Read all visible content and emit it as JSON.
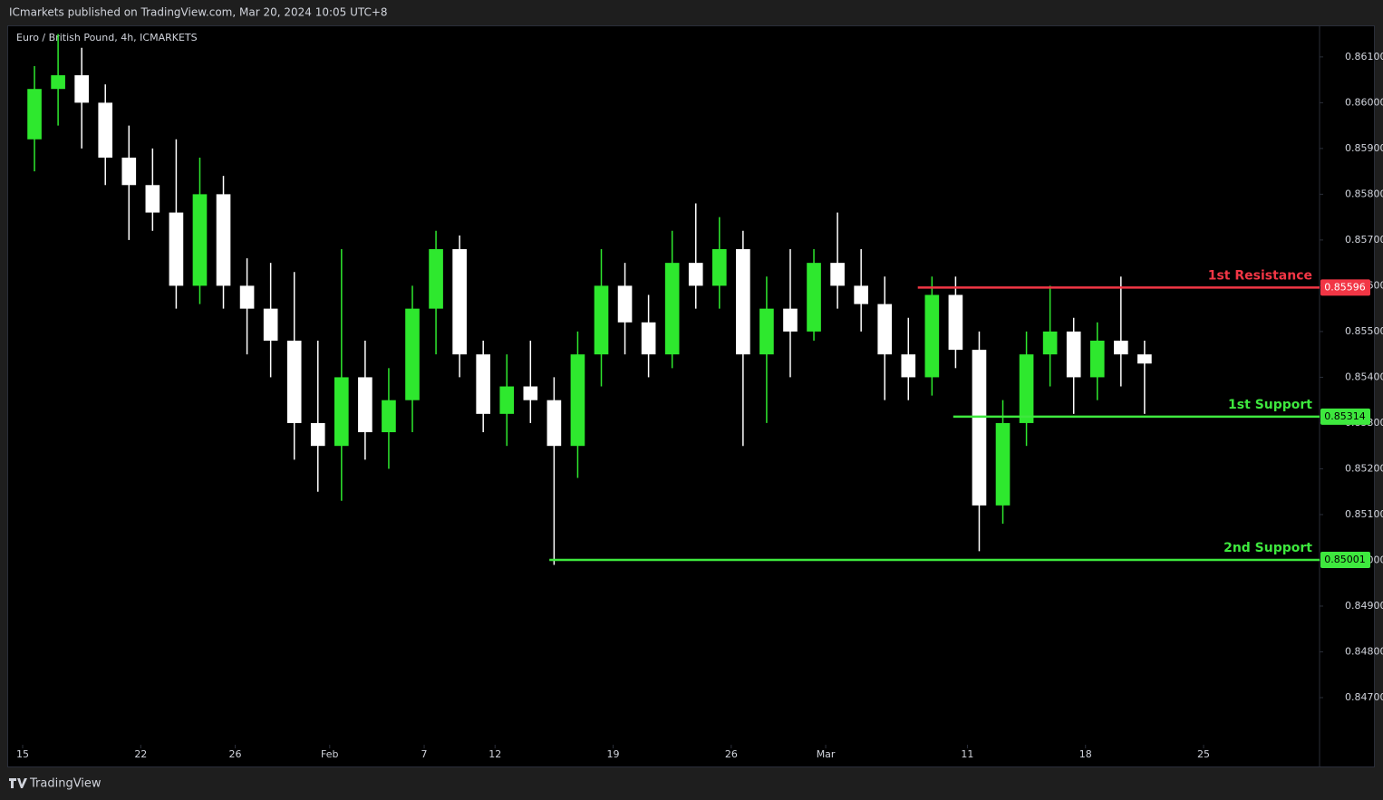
{
  "header": {
    "publisher": "ICmarkets published on TradingView.com, Mar 20, 2024 10:05 UTC+8"
  },
  "chart_data": {
    "type": "candlestick",
    "title": "Euro / British Pound, 4h, ICMARKETS",
    "up_color": "#2ee82e",
    "down_color": "#ffffff",
    "open": [
      0.8592,
      0.8603,
      0.8606,
      0.86,
      0.8588,
      0.8582,
      0.8576,
      0.856,
      0.858,
      0.856,
      0.8555,
      0.8548,
      0.853,
      0.8525,
      0.854,
      0.8528,
      0.8535,
      0.8555,
      0.8568,
      0.8545,
      0.8532,
      0.8538,
      0.8535,
      0.8525,
      0.8545,
      0.856,
      0.8552,
      0.8545,
      0.8565,
      0.856,
      0.8568,
      0.8545,
      0.8555,
      0.855,
      0.8565,
      0.856,
      0.8556,
      0.8545,
      0.854,
      0.8558,
      0.8546,
      0.8512,
      0.853,
      0.8545,
      0.855,
      0.854,
      0.8548,
      0.8545
    ],
    "high": [
      0.8608,
      0.8615,
      0.8612,
      0.8604,
      0.8595,
      0.859,
      0.8592,
      0.8588,
      0.8584,
      0.8566,
      0.8565,
      0.8563,
      0.8548,
      0.8568,
      0.8548,
      0.8542,
      0.856,
      0.8572,
      0.8571,
      0.8548,
      0.8545,
      0.8548,
      0.854,
      0.855,
      0.8568,
      0.8565,
      0.8558,
      0.8572,
      0.8578,
      0.8575,
      0.8572,
      0.8562,
      0.8568,
      0.8568,
      0.8576,
      0.8568,
      0.8562,
      0.8553,
      0.8562,
      0.8562,
      0.855,
      0.8535,
      0.855,
      0.856,
      0.8553,
      0.8552,
      0.8562,
      0.8548
    ],
    "low": [
      0.8585,
      0.8595,
      0.859,
      0.8582,
      0.857,
      0.8572,
      0.8555,
      0.8556,
      0.8555,
      0.8545,
      0.854,
      0.8522,
      0.8515,
      0.8513,
      0.8522,
      0.852,
      0.8528,
      0.8545,
      0.854,
      0.8528,
      0.8525,
      0.853,
      0.8499,
      0.8518,
      0.8538,
      0.8545,
      0.854,
      0.8542,
      0.8555,
      0.8555,
      0.8525,
      0.853,
      0.854,
      0.8548,
      0.8555,
      0.855,
      0.8535,
      0.8535,
      0.8536,
      0.8542,
      0.8502,
      0.8508,
      0.8525,
      0.8538,
      0.8532,
      0.8535,
      0.8538,
      0.8532
    ],
    "close": [
      0.8603,
      0.8606,
      0.86,
      0.8588,
      0.8582,
      0.8576,
      0.856,
      0.858,
      0.856,
      0.8555,
      0.8548,
      0.853,
      0.8525,
      0.854,
      0.8528,
      0.8535,
      0.8555,
      0.8568,
      0.8545,
      0.8532,
      0.8538,
      0.8535,
      0.8525,
      0.8545,
      0.856,
      0.8552,
      0.8545,
      0.8565,
      0.856,
      0.8568,
      0.8545,
      0.8555,
      0.855,
      0.8565,
      0.856,
      0.8556,
      0.8545,
      0.854,
      0.8558,
      0.8546,
      0.8512,
      0.853,
      0.8545,
      0.855,
      0.854,
      0.8548,
      0.8545,
      0.8543
    ],
    "xlim": [
      -0.576,
      54.91
    ],
    "xticks": [
      {
        "value": 0,
        "label": "15"
      },
      {
        "value": 5,
        "label": "22"
      },
      {
        "value": 9,
        "label": "26"
      },
      {
        "value": 13,
        "label": "Feb"
      },
      {
        "value": 17,
        "label": "7"
      },
      {
        "value": 20,
        "label": "12"
      },
      {
        "value": 25,
        "label": "19"
      },
      {
        "value": 30,
        "label": "26"
      },
      {
        "value": 34,
        "label": "Mar"
      },
      {
        "value": 40,
        "label": "11"
      },
      {
        "value": 45,
        "label": "18"
      },
      {
        "value": 50,
        "label": "25"
      }
    ],
    "ylim": [
      0.84601,
      0.86169
    ],
    "yticks": [
      {
        "value": 0.847,
        "label": "0.84700"
      },
      {
        "value": 0.848,
        "label": "0.84800"
      },
      {
        "value": 0.849,
        "label": "0.84900"
      },
      {
        "value": 0.85,
        "label": "0.85000"
      },
      {
        "value": 0.851,
        "label": "0.85100"
      },
      {
        "value": 0.852,
        "label": "0.85200"
      },
      {
        "value": 0.853,
        "label": "0.85300"
      },
      {
        "value": 0.854,
        "label": "0.85400"
      },
      {
        "value": 0.855,
        "label": "0.85500"
      },
      {
        "value": 0.856,
        "label": "0.85600"
      },
      {
        "value": 0.857,
        "label": "0.85700"
      },
      {
        "value": 0.858,
        "label": "0.85800"
      },
      {
        "value": 0.859,
        "label": "0.85900"
      },
      {
        "value": 0.86,
        "label": "0.86000"
      },
      {
        "value": 0.861,
        "label": "0.86100"
      }
    ],
    "levels": [
      {
        "name": "1st Resistance",
        "value": 0.85596,
        "start": 37.9,
        "color": "#f23645",
        "label_color": "#ffffff"
      },
      {
        "name": "1st Support",
        "value": 0.85314,
        "start": 39.4,
        "color": "#3ee83e",
        "label_color": "#000000"
      },
      {
        "name": "2nd Support",
        "value": 0.85001,
        "start": 22.3,
        "color": "#3ee83e",
        "label_color": "#000000"
      }
    ]
  },
  "footer": {
    "brand": "TradingView"
  }
}
